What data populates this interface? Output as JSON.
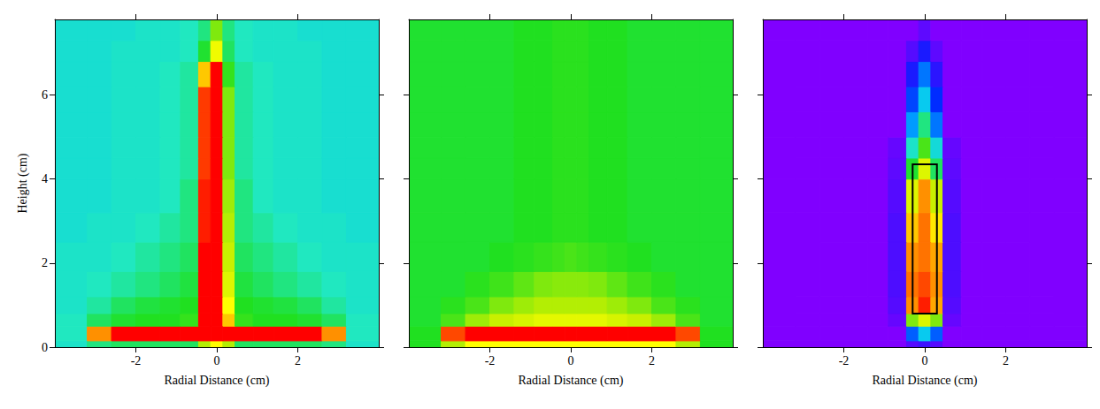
{
  "chart_data": [
    {
      "type": "heatmap",
      "x_label": "Radial Distance (cm)",
      "y_label": "Height (cm)",
      "xlim": [
        -4,
        4
      ],
      "ylim": [
        0,
        7.8
      ],
      "xticks": [
        -2,
        0,
        2
      ],
      "yticks": [
        0,
        2,
        4,
        6
      ],
      "color_range": [
        0,
        100
      ],
      "x_edges": [
        -4,
        -3.2,
        -2.6,
        -2,
        -1.4,
        -0.9,
        -0.45,
        -0.15,
        0.15,
        0.45,
        0.9,
        1.4,
        2,
        2.6,
        3.2,
        4
      ],
      "y_edges": [
        0,
        0.15,
        0.5,
        0.8,
        1.2,
        1.8,
        2.5,
        3.2,
        4,
        4.5,
        5,
        5.6,
        6.2,
        6.8,
        7.3,
        7.8
      ],
      "cells": [
        [
          35,
          40,
          42,
          42,
          42,
          42,
          60,
          70,
          60,
          42,
          42,
          42,
          42,
          40,
          35
        ],
        [
          36,
          80,
          92,
          92,
          92,
          92,
          92,
          92,
          92,
          92,
          92,
          92,
          92,
          80,
          36
        ],
        [
          36,
          42,
          45,
          46,
          46,
          48,
          92,
          92,
          75,
          48,
          46,
          46,
          45,
          42,
          36
        ],
        [
          35,
          38,
          42,
          44,
          45,
          46,
          92,
          92,
          70,
          46,
          45,
          44,
          42,
          38,
          35
        ],
        [
          35,
          36,
          38,
          40,
          42,
          44,
          90,
          92,
          65,
          44,
          42,
          40,
          38,
          36,
          35
        ],
        [
          35,
          35,
          36,
          38,
          40,
          42,
          90,
          92,
          62,
          42,
          40,
          38,
          36,
          35,
          35
        ],
        [
          34,
          35,
          35,
          36,
          38,
          40,
          88,
          92,
          60,
          40,
          38,
          36,
          35,
          35,
          34
        ],
        [
          34,
          34,
          35,
          35,
          36,
          40,
          88,
          92,
          58,
          40,
          36,
          35,
          35,
          34,
          34
        ],
        [
          34,
          34,
          35,
          35,
          36,
          38,
          86,
          92,
          55,
          38,
          36,
          35,
          35,
          34,
          34
        ],
        [
          34,
          34,
          35,
          35,
          36,
          38,
          86,
          92,
          55,
          38,
          36,
          35,
          35,
          34,
          34
        ],
        [
          34,
          34,
          35,
          35,
          36,
          38,
          86,
          92,
          55,
          38,
          36,
          35,
          35,
          34,
          34
        ],
        [
          34,
          34,
          35,
          35,
          36,
          38,
          86,
          92,
          55,
          38,
          36,
          35,
          35,
          34,
          34
        ],
        [
          34,
          34,
          35,
          35,
          36,
          38,
          75,
          90,
          48,
          38,
          36,
          35,
          35,
          34,
          34
        ],
        [
          34,
          34,
          35,
          35,
          35,
          36,
          45,
          68,
          42,
          36,
          35,
          35,
          35,
          34,
          34
        ],
        [
          34,
          34,
          34,
          35,
          35,
          36,
          40,
          55,
          40,
          36,
          35,
          35,
          34,
          34,
          34
        ]
      ]
    },
    {
      "type": "heatmap",
      "x_label": "Radial Distance (cm)",
      "tick_labels": "x",
      "xlim": [
        -4,
        4
      ],
      "ylim": [
        0,
        7.8
      ],
      "xticks": [
        -2,
        0,
        2
      ],
      "yticks": [
        0,
        2,
        4,
        6
      ],
      "color_range": [
        0,
        100
      ],
      "x_edges": [
        -4,
        -3.2,
        -2.6,
        -2,
        -1.4,
        -0.9,
        -0.45,
        -0.15,
        0.15,
        0.45,
        0.9,
        1.4,
        2,
        2.6,
        3.2,
        4
      ],
      "y_edges": [
        0,
        0.15,
        0.5,
        0.8,
        1.2,
        1.8,
        2.5,
        3.2,
        4,
        4.5,
        5,
        5.6,
        6.2,
        6.8,
        7.3,
        7.8
      ],
      "cells": [
        [
          46,
          60,
          70,
          70,
          70,
          70,
          70,
          70,
          70,
          70,
          70,
          70,
          70,
          60,
          46
        ],
        [
          46,
          85,
          92,
          92,
          92,
          92,
          92,
          92,
          92,
          92,
          92,
          92,
          92,
          85,
          46
        ],
        [
          45,
          50,
          58,
          62,
          64,
          66,
          66,
          66,
          66,
          66,
          64,
          62,
          58,
          50,
          45
        ],
        [
          45,
          47,
          50,
          55,
          58,
          60,
          60,
          60,
          60,
          60,
          58,
          55,
          50,
          47,
          45
        ],
        [
          45,
          45,
          47,
          49,
          52,
          55,
          56,
          56,
          56,
          55,
          52,
          49,
          47,
          45,
          45
        ],
        [
          45,
          45,
          45,
          46,
          47,
          48,
          49,
          50,
          49,
          48,
          47,
          46,
          45,
          45,
          45
        ],
        [
          45,
          45,
          45,
          45,
          46,
          46,
          47,
          47,
          47,
          46,
          46,
          45,
          45,
          45,
          45
        ],
        [
          45,
          45,
          45,
          45,
          46,
          46,
          47,
          47,
          47,
          46,
          46,
          45,
          45,
          45,
          45
        ],
        [
          45,
          45,
          45,
          45,
          46,
          46,
          47,
          47,
          47,
          46,
          46,
          45,
          45,
          45,
          45
        ],
        [
          45,
          45,
          45,
          45,
          46,
          46,
          47,
          47,
          47,
          46,
          46,
          45,
          45,
          45,
          45
        ],
        [
          45,
          45,
          45,
          45,
          46,
          46,
          47,
          47,
          47,
          46,
          46,
          45,
          45,
          45,
          45
        ],
        [
          45,
          45,
          45,
          45,
          46,
          46,
          47,
          47,
          47,
          46,
          46,
          45,
          45,
          45,
          45
        ],
        [
          45,
          45,
          45,
          45,
          46,
          46,
          47,
          47,
          47,
          46,
          46,
          45,
          45,
          45,
          45
        ],
        [
          45,
          45,
          45,
          45,
          46,
          46,
          47,
          47,
          47,
          46,
          46,
          45,
          45,
          45,
          45
        ],
        [
          45,
          45,
          45,
          45,
          46,
          46,
          47,
          47,
          47,
          46,
          46,
          45,
          45,
          45,
          45
        ]
      ]
    },
    {
      "type": "heatmap",
      "x_label": "Radial Distance (cm)",
      "tick_labels": "x",
      "xlim": [
        -4,
        4
      ],
      "ylim": [
        0,
        7.8
      ],
      "xticks": [
        -2,
        0,
        2
      ],
      "yticks": [
        0,
        2,
        4,
        6
      ],
      "color_range": [
        0,
        100
      ],
      "region": {
        "x": [
          -0.3,
          0.3
        ],
        "y": [
          0.8,
          4.35
        ]
      },
      "x_edges": [
        -4,
        -3.2,
        -2.6,
        -2,
        -1.4,
        -0.9,
        -0.45,
        -0.15,
        0.15,
        0.45,
        0.9,
        1.4,
        2,
        2.6,
        3.2,
        4
      ],
      "y_edges": [
        0,
        0.15,
        0.5,
        0.8,
        1.2,
        1.8,
        2.5,
        3.2,
        4,
        4.5,
        5,
        5.6,
        6.2,
        6.8,
        7.3,
        7.8
      ],
      "cells": [
        [
          0,
          0,
          0,
          0,
          0,
          0,
          5,
          8,
          5,
          0,
          0,
          0,
          0,
          0,
          0
        ],
        [
          0,
          0,
          0,
          0,
          0,
          0,
          20,
          30,
          20,
          0,
          0,
          0,
          0,
          0,
          0
        ],
        [
          0,
          0,
          0,
          0,
          0,
          3,
          55,
          65,
          55,
          3,
          0,
          0,
          0,
          0,
          0
        ],
        [
          0,
          0,
          0,
          0,
          0,
          5,
          80,
          88,
          78,
          5,
          0,
          0,
          0,
          0,
          0
        ],
        [
          0,
          0,
          0,
          0,
          0,
          6,
          82,
          85,
          80,
          6,
          0,
          0,
          0,
          0,
          0
        ],
        [
          0,
          0,
          0,
          0,
          0,
          6,
          80,
          82,
          78,
          6,
          0,
          0,
          0,
          0,
          0
        ],
        [
          0,
          0,
          0,
          0,
          0,
          6,
          75,
          82,
          72,
          6,
          0,
          0,
          0,
          0,
          0
        ],
        [
          0,
          0,
          0,
          0,
          0,
          5,
          65,
          80,
          62,
          5,
          0,
          0,
          0,
          0,
          0
        ],
        [
          0,
          0,
          0,
          0,
          0,
          4,
          45,
          65,
          42,
          4,
          0,
          0,
          0,
          0,
          0
        ],
        [
          0,
          0,
          0,
          0,
          0,
          3,
          35,
          50,
          33,
          3,
          0,
          0,
          0,
          0,
          0
        ],
        [
          0,
          0,
          0,
          0,
          0,
          0,
          25,
          40,
          22,
          0,
          0,
          0,
          0,
          0,
          0
        ],
        [
          0,
          0,
          0,
          0,
          0,
          0,
          18,
          30,
          16,
          0,
          0,
          0,
          0,
          0,
          0
        ],
        [
          0,
          0,
          0,
          0,
          0,
          0,
          12,
          22,
          10,
          0,
          0,
          0,
          0,
          0,
          0
        ],
        [
          0,
          0,
          0,
          0,
          0,
          0,
          5,
          12,
          4,
          0,
          0,
          0,
          0,
          0,
          0
        ],
        [
          0,
          0,
          0,
          0,
          0,
          0,
          0,
          4,
          0,
          0,
          0,
          0,
          0,
          0,
          0
        ]
      ]
    }
  ]
}
